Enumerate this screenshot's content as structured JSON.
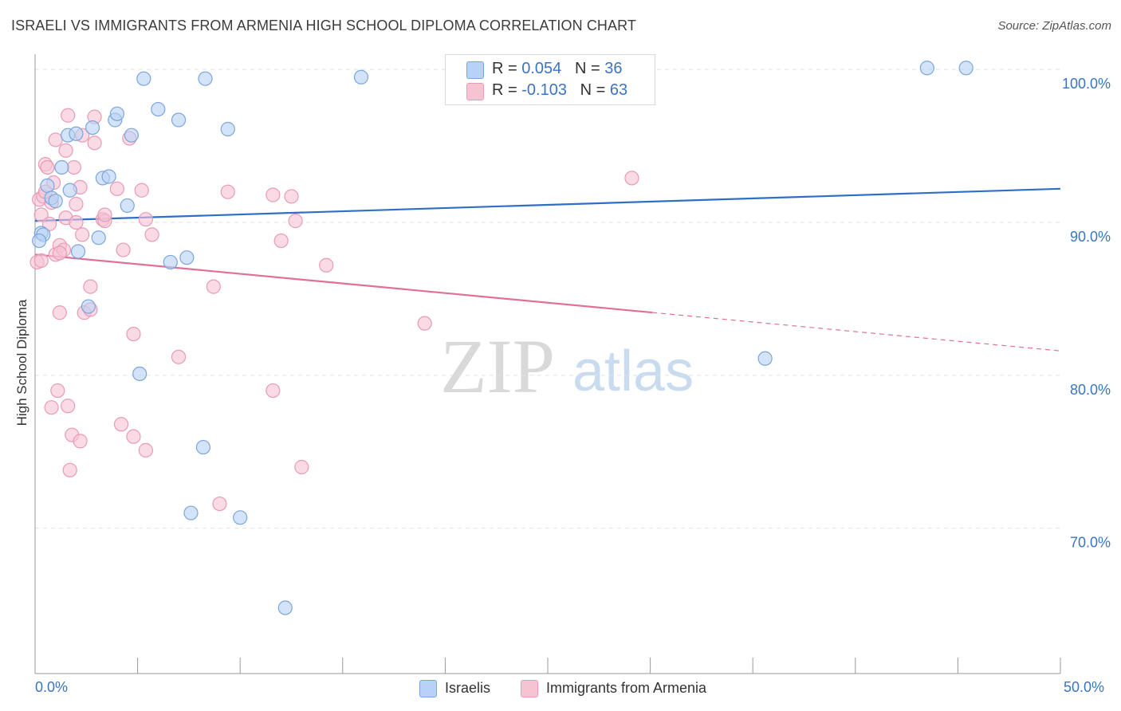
{
  "title": "ISRAELI VS IMMIGRANTS FROM ARMENIA HIGH SCHOOL DIPLOMA CORRELATION CHART",
  "source": "Source: ZipAtlas.com",
  "watermark": {
    "zip": "ZIP",
    "atlas": "atlas"
  },
  "colors": {
    "blue_fill": "#b7d2f4",
    "blue_stroke": "#7aa6dd",
    "blue_line": "#2e6fc6",
    "pink_fill": "#f6c3d3",
    "pink_stroke": "#e99ab5",
    "pink_line": "#e07099",
    "axis_text": "#3a74c4",
    "grid": "#e2e2e2"
  },
  "legend": {
    "rows": [
      {
        "r_label": "R = ",
        "r_value": "0.054",
        "n_label": "N = ",
        "n_value": "36"
      },
      {
        "r_label": "R = ",
        "r_value": "-0.103",
        "n_label": "N = ",
        "n_value": "63"
      }
    ]
  },
  "bottom_legend": {
    "israelis": "Israelis",
    "armenia": "Immigrants from Armenia"
  },
  "chart_data": {
    "type": "scatter",
    "title": "ISRAELI VS IMMIGRANTS FROM ARMENIA HIGH SCHOOL DIPLOMA CORRELATION CHART",
    "ylabel": "High School Diploma",
    "xlabel": "",
    "xlim": [
      0,
      50
    ],
    "ylim": [
      60.5,
      101
    ],
    "x_tick_labels": {
      "min": "0.0%",
      "max": "50.0%"
    },
    "y_ticks": [
      {
        "value": 100,
        "label": "100.0%"
      },
      {
        "value": 90,
        "label": "90.0%"
      },
      {
        "value": 80,
        "label": "80.0%"
      },
      {
        "value": 70,
        "label": "70.0%"
      }
    ],
    "series": [
      {
        "name": "Israelis",
        "color": "#b7d2f4",
        "trend": {
          "x0": 0,
          "y0": 90.1,
          "x1": 50,
          "y1": 92.2,
          "dashed_from": null
        },
        "points": [
          [
            0.3,
            89.3
          ],
          [
            0.4,
            89.2
          ],
          [
            0.6,
            92.4
          ],
          [
            0.8,
            91.6
          ],
          [
            1.0,
            91.4
          ],
          [
            1.3,
            93.6
          ],
          [
            1.6,
            95.7
          ],
          [
            1.7,
            92.1
          ],
          [
            2.0,
            95.8
          ],
          [
            2.1,
            88.1
          ],
          [
            2.6,
            84.5
          ],
          [
            2.8,
            96.2
          ],
          [
            3.1,
            89.0
          ],
          [
            3.3,
            92.9
          ],
          [
            3.6,
            93.0
          ],
          [
            3.9,
            96.7
          ],
          [
            4.0,
            97.1
          ],
          [
            4.5,
            91.1
          ],
          [
            4.7,
            95.7
          ],
          [
            5.1,
            80.1
          ],
          [
            5.3,
            99.4
          ],
          [
            6.0,
            97.4
          ],
          [
            6.6,
            87.4
          ],
          [
            7.0,
            96.7
          ],
          [
            7.4,
            87.7
          ],
          [
            7.6,
            71.0
          ],
          [
            8.2,
            75.3
          ],
          [
            8.3,
            99.4
          ],
          [
            9.4,
            96.1
          ],
          [
            10.0,
            70.7
          ],
          [
            12.2,
            64.8
          ],
          [
            15.9,
            99.5
          ],
          [
            35.6,
            81.1
          ],
          [
            43.5,
            100.1
          ],
          [
            45.4,
            100.1
          ],
          [
            0.2,
            88.8
          ]
        ]
      },
      {
        "name": "Immigrants from Armenia",
        "color": "#f6c3d3",
        "trend": {
          "x0": 0,
          "y0": 87.9,
          "x1": 50,
          "y1": 81.6,
          "dashed_from": 30.1
        },
        "points": [
          [
            0.1,
            87.4
          ],
          [
            0.2,
            91.5
          ],
          [
            0.3,
            90.5
          ],
          [
            0.3,
            87.5
          ],
          [
            0.4,
            91.7
          ],
          [
            0.5,
            93.8
          ],
          [
            0.6,
            93.6
          ],
          [
            0.7,
            89.9
          ],
          [
            0.8,
            91.3
          ],
          [
            0.8,
            77.9
          ],
          [
            0.9,
            92.6
          ],
          [
            1.0,
            87.9
          ],
          [
            1.0,
            95.4
          ],
          [
            1.1,
            79.0
          ],
          [
            1.2,
            84.1
          ],
          [
            1.2,
            88.5
          ],
          [
            1.4,
            88.2
          ],
          [
            1.5,
            90.3
          ],
          [
            1.5,
            94.7
          ],
          [
            1.6,
            78.0
          ],
          [
            1.6,
            97.0
          ],
          [
            1.7,
            73.8
          ],
          [
            1.8,
            76.1
          ],
          [
            1.9,
            93.6
          ],
          [
            2.0,
            91.2
          ],
          [
            2.2,
            92.3
          ],
          [
            2.2,
            75.7
          ],
          [
            2.3,
            95.7
          ],
          [
            2.3,
            89.2
          ],
          [
            2.4,
            84.1
          ],
          [
            2.7,
            85.8
          ],
          [
            2.7,
            84.3
          ],
          [
            2.9,
            95.2
          ],
          [
            2.9,
            96.9
          ],
          [
            3.3,
            90.2
          ],
          [
            3.4,
            90.1
          ],
          [
            3.4,
            90.5
          ],
          [
            4.0,
            92.2
          ],
          [
            4.2,
            76.8
          ],
          [
            4.3,
            88.2
          ],
          [
            4.6,
            95.5
          ],
          [
            4.8,
            82.7
          ],
          [
            4.8,
            76.0
          ],
          [
            5.2,
            92.1
          ],
          [
            5.4,
            90.2
          ],
          [
            5.4,
            75.1
          ],
          [
            5.7,
            89.2
          ],
          [
            7.0,
            81.2
          ],
          [
            8.7,
            85.8
          ],
          [
            9.0,
            71.6
          ],
          [
            9.4,
            92.0
          ],
          [
            11.6,
            79.0
          ],
          [
            11.6,
            91.8
          ],
          [
            12.0,
            88.8
          ],
          [
            12.5,
            91.7
          ],
          [
            12.7,
            90.1
          ],
          [
            13.0,
            74.0
          ],
          [
            14.2,
            87.2
          ],
          [
            19.0,
            83.4
          ],
          [
            29.1,
            92.9
          ],
          [
            1.2,
            88.0
          ],
          [
            0.5,
            92.0
          ],
          [
            2.0,
            90.0
          ]
        ]
      }
    ]
  }
}
